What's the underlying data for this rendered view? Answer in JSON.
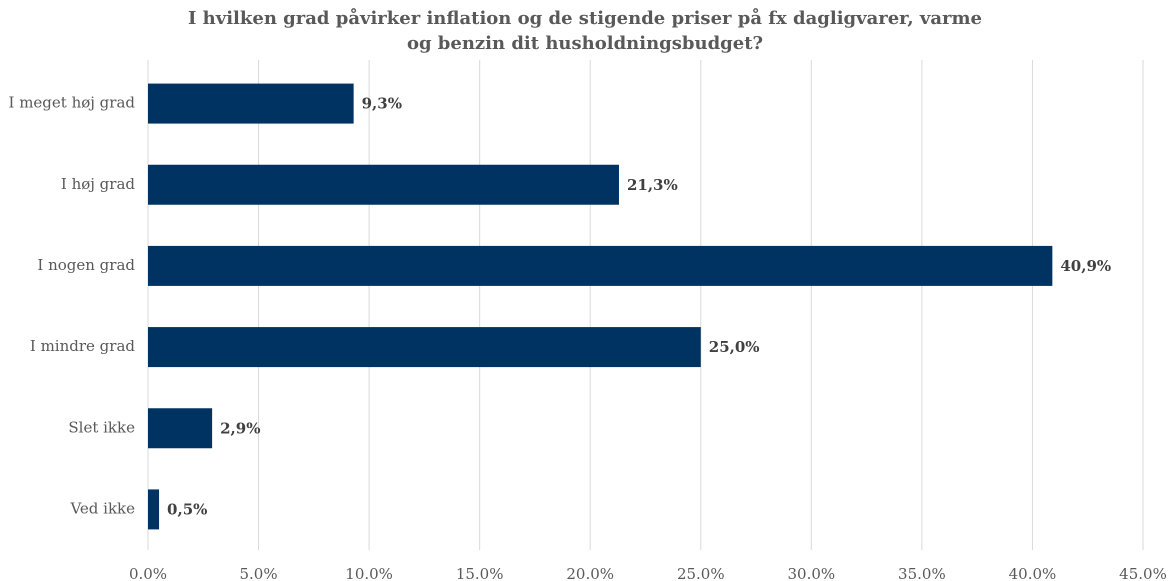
{
  "chart_data": {
    "type": "bar",
    "orientation": "horizontal",
    "title": "I hvilken grad påvirker inflation og de stigende priser på fx dagligvarer, varme og benzin dit husholdningsbudget?",
    "categories": [
      "I meget høj grad",
      "I høj grad",
      "I nogen grad",
      "I mindre grad",
      "Slet ikke",
      "Ved ikke"
    ],
    "values": [
      9.3,
      21.3,
      40.9,
      25.0,
      2.9,
      0.5
    ],
    "value_labels": [
      "9,3%",
      "21,3%",
      "40,9%",
      "25,0%",
      "2,9%",
      "0,5%"
    ],
    "color": "#003361",
    "xlim": [
      0,
      45
    ],
    "xticks": [
      {
        "value": 0,
        "label": "0.0%"
      },
      {
        "value": 5,
        "label": "5.0%"
      },
      {
        "value": 10,
        "label": "10.0%"
      },
      {
        "value": 15,
        "label": "15.0%"
      },
      {
        "value": 20,
        "label": "20.0%"
      },
      {
        "value": 25,
        "label": "25.0%"
      },
      {
        "value": 30,
        "label": "30.0%"
      },
      {
        "value": 35,
        "label": "35.0%"
      },
      {
        "value": 40,
        "label": "40.0%"
      },
      {
        "value": 45,
        "label": "45.0%"
      }
    ],
    "grid": true
  }
}
